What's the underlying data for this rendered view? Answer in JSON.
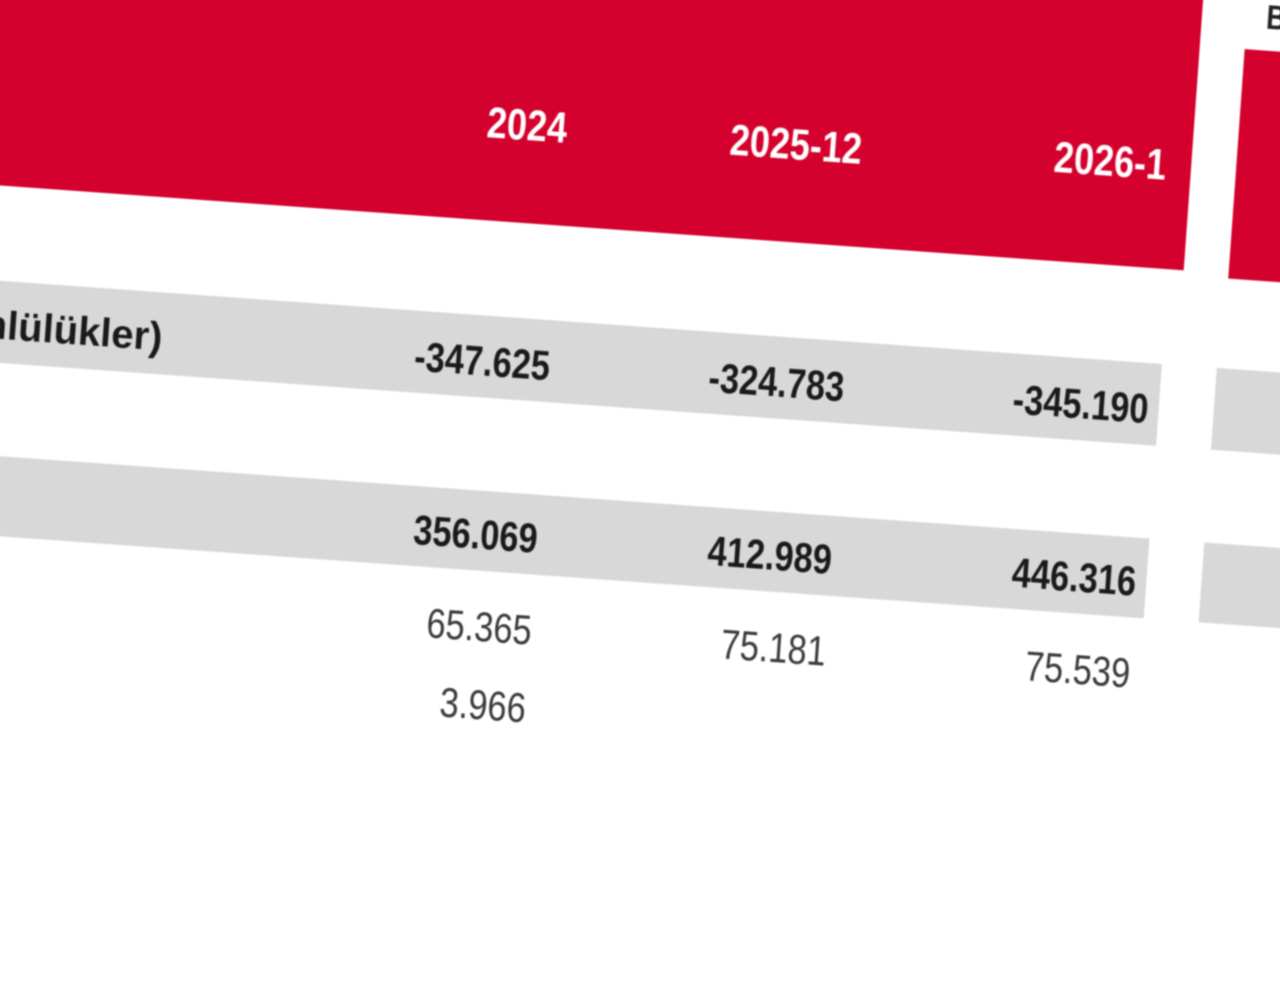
{
  "table": {
    "columns": [
      "2024",
      "2025-12",
      "2026-1"
    ],
    "side_header": "B",
    "rows": [
      {
        "label": "mlülükler)",
        "values": [
          "-347.625",
          "-324.783",
          "-345.190"
        ]
      },
      {
        "values": [
          "356.069",
          "412.989",
          "446.316"
        ]
      },
      {
        "values": [
          "65.365",
          "75.181",
          "75.539"
        ]
      },
      {
        "values": [
          "3.966"
        ]
      }
    ]
  }
}
